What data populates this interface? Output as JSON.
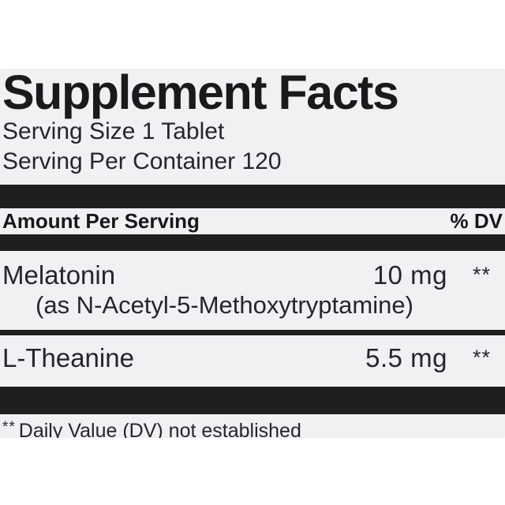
{
  "label": {
    "title": "Supplement Facts",
    "serving_size": "Serving Size 1 Tablet",
    "servings_per_container": "Serving Per Container 120",
    "header": {
      "amount_label": "Amount Per Serving",
      "dv_label": "% DV"
    },
    "rows": [
      {
        "name": "Melatonin",
        "detail": "(as N-Acetyl-5-Methoxytryptamine)",
        "amount": "10 mg",
        "dv": "**"
      },
      {
        "name": "L-Theanine",
        "amount": "5.5 mg",
        "dv": "**"
      }
    ],
    "footnote_marker": "**",
    "footnote_text": "Daily Value (DV) not established"
  },
  "colors": {
    "panel_background": "#f1f1f4",
    "bar_black": "#1f1f21",
    "text": "#23262b",
    "page_background": "#ffffff"
  }
}
